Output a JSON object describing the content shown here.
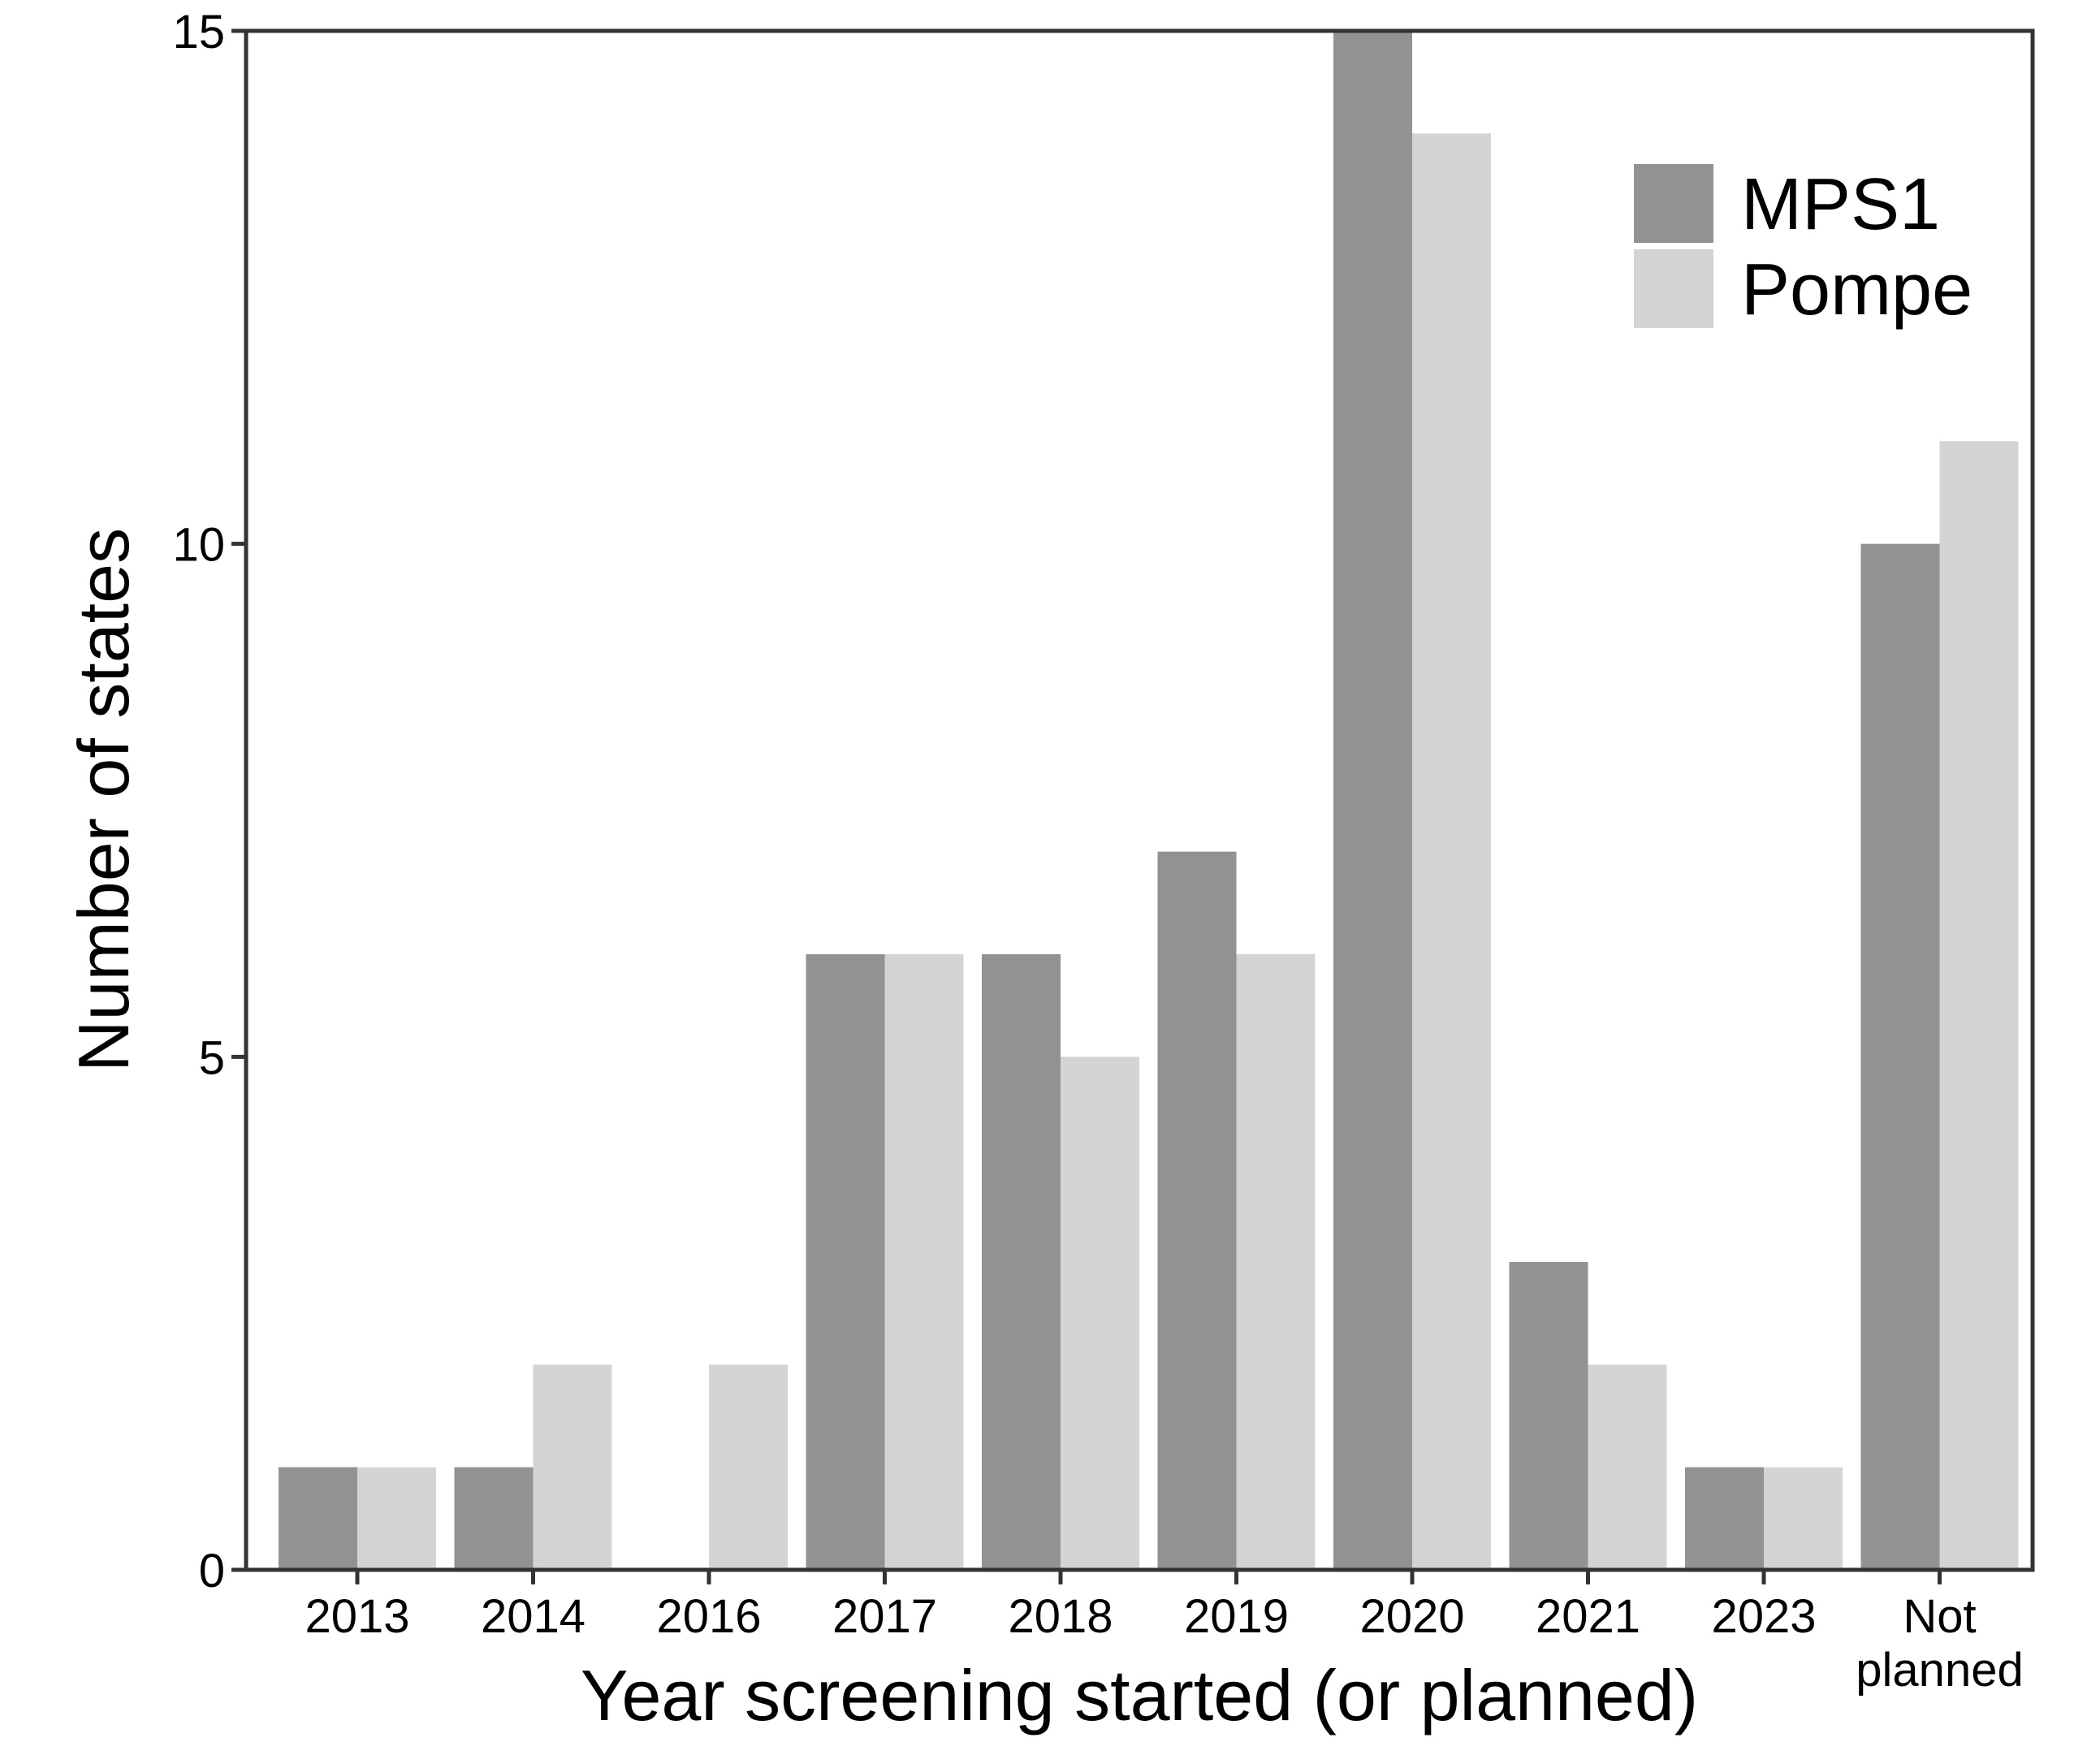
{
  "chart_data": {
    "type": "bar",
    "categories": [
      "2013",
      "2014",
      "2016",
      "2017",
      "2018",
      "2019",
      "2020",
      "2021",
      "2023",
      "Not planned"
    ],
    "series": [
      {
        "name": "MPS1",
        "color": "#929292",
        "values": [
          1,
          1,
          0,
          6,
          6,
          7,
          15,
          3,
          1,
          10
        ]
      },
      {
        "name": "Pompe",
        "color": "#d4d4d4",
        "values": [
          1,
          2,
          2,
          6,
          5,
          6,
          14,
          2,
          1,
          11
        ]
      }
    ],
    "title": "",
    "xlabel": "Year screening started (or planned)",
    "ylabel": "Number of states",
    "ylim": [
      0,
      15
    ],
    "yticks": [
      0,
      5,
      10,
      15
    ],
    "grid": false,
    "legend_position": "top-right"
  }
}
